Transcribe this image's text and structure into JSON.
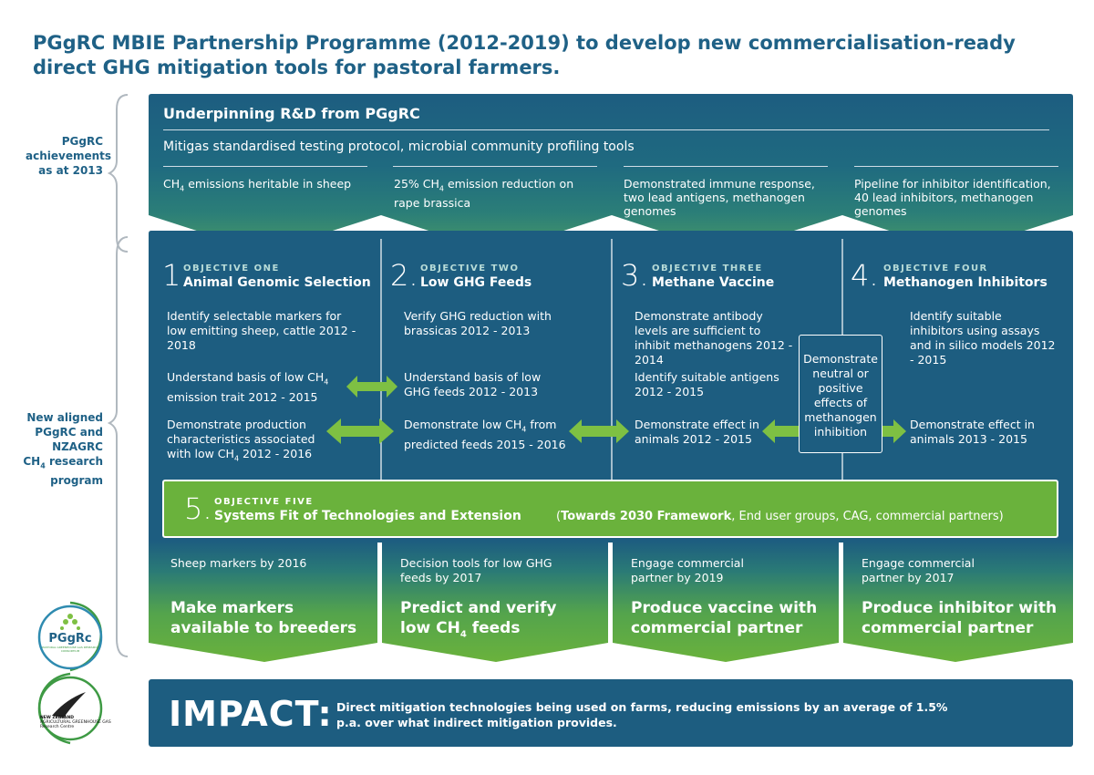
{
  "title": {
    "line1": "PGgRC MBIE Partnership Programme (2012-2019) to develop new commercialisation-ready",
    "line2": "direct GHG mitigation tools for pastoral farmers."
  },
  "side_labels": {
    "achievements": [
      "PGgRC",
      "achievements",
      "as at 2013"
    ],
    "program": [
      "New aligned",
      "PGgRC and",
      "NZAGRC",
      "CH4 research",
      "program"
    ]
  },
  "underpinning": {
    "title": "Underpinning R&D from PGgRC",
    "subtitle": "Mitigas standardised testing protocol, microbial community profiling tools",
    "achievements": [
      "CH4 emissions heritable in sheep",
      "25% CH4 emission reduction on rape brassica",
      "Demonstrated immune response, two lead antigens, methanogen genomes",
      "Pipeline for inhibitor identification, 40 lead inhibitors, methanogen genomes"
    ]
  },
  "objectives": [
    {
      "number": "1.",
      "label": "OBJECTIVE ONE",
      "name": "Animal Genomic Selection",
      "items": [
        "Identify selectable markers for low emitting sheep, cattle 2012 - 2018",
        "Understand basis of low CH4 emission trait 2012 - 2015",
        "Demonstrate production characteristics associated with low CH4 2012 - 2016"
      ]
    },
    {
      "number": "2.",
      "label": "OBJECTIVE TWO",
      "name": "Low GHG Feeds",
      "items": [
        "Verify GHG reduction with brassicas 2012 - 2013",
        "Understand basis of low GHG feeds 2012 - 2013",
        "Demonstrate low CH4 from predicted feeds 2015 - 2016"
      ]
    },
    {
      "number": "3.",
      "label": "OBJECTIVE THREE",
      "name": "Methane Vaccine",
      "items": [
        "Demonstrate antibody levels are sufficient to inhibit methanogens 2012 - 2014",
        "Identify suitable antigens 2012 - 2015",
        "Demonstrate effect in animals 2012 - 2015"
      ]
    },
    {
      "number": "4.",
      "label": "OBJECTIVE FOUR",
      "name": "Methanogen Inhibitors",
      "items": [
        "Identify suitable inhibitors using assays and in silico models 2012 - 2015",
        "Demonstrate effect in animals 2013 - 2015"
      ]
    }
  ],
  "demo_box": "Demonstrate neutral or positive effects of methanogen inhibition",
  "objective_five": {
    "number": "5.",
    "label": "OBJECTIVE FIVE",
    "name": "Systems Fit of Technologies and Extension",
    "tag_bold": "Towards 2030 Framework",
    "tag_rest": ", End user groups, CAG, commercial partners)",
    "tag_open": "("
  },
  "outcomes": [
    {
      "small": "Sheep markers by 2016",
      "big": "Make markers available to breeders"
    },
    {
      "small": "Decision tools for low GHG feeds by 2017",
      "big": "Predict and verify low CH4 feeds"
    },
    {
      "small": "Engage commercial partner by 2019",
      "big": "Produce vaccine with commercial partner"
    },
    {
      "small": "Engage commercial partner by 2017",
      "big": "Produce inhibitor with commercial partner"
    }
  ],
  "impact": {
    "word": "IMPACT:",
    "text": "Direct mitigation technologies being used on farms, reducing emissions by an average of 1.5% p.a. over what indirect mitigation provides."
  },
  "logos": {
    "pggrc": "PGgRc",
    "pggrc_sub": "PASTORAL GREENHOUSE GAS RESEARCH CONSORTIUM",
    "nz1": "NEW ZEALAND",
    "nz2": "AGRICULTURAL GREENHOUSE GAS",
    "nz3": "Research Centre"
  },
  "colors": {
    "title": "#1f6186",
    "panel": "#1d5d80",
    "green": "#6ab23c",
    "arrow": "#7ec043"
  }
}
